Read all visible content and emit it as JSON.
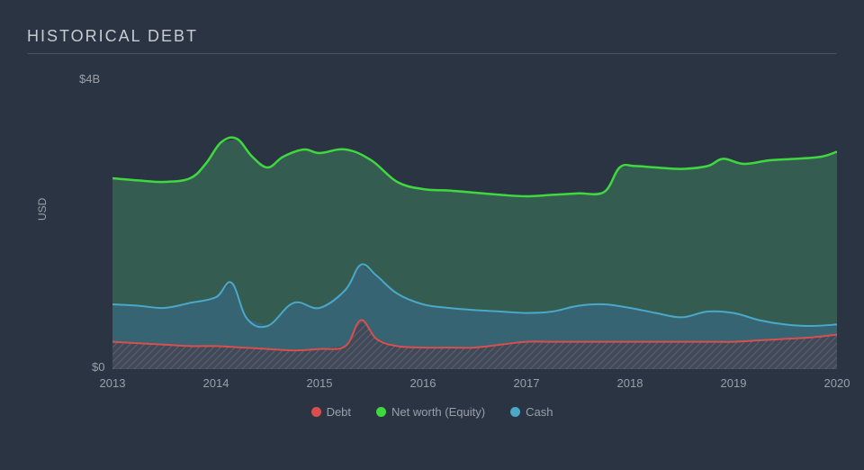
{
  "chart": {
    "type": "stacked-area",
    "title": "HISTORICAL DEBT",
    "background_color": "#2a3442",
    "title_color": "#c8ccd2",
    "title_fontsize": 18,
    "title_letter_spacing": 2,
    "axis_label_color": "#9aa0aa",
    "axis_fontsize": 13,
    "grid_color": "#3a4250",
    "border_color": "#4a5260",
    "y_axis": {
      "title": "USD",
      "min": 0,
      "max": 4,
      "unit": "B",
      "currency": "$",
      "tick_labels": {
        "top": "$4B",
        "bottom": "$0"
      }
    },
    "x_axis": {
      "min": 2013,
      "max": 2020,
      "ticks": [
        2013,
        2014,
        2015,
        2016,
        2017,
        2018,
        2019,
        2020
      ]
    },
    "series": [
      {
        "name": "Debt",
        "stroke": "#d94f4f",
        "fill": "#4a5161",
        "fill_opacity": 0.85,
        "hatch": true,
        "hatch_color": "#636a78",
        "line_width": 2,
        "points": [
          {
            "x": 2013.0,
            "y": 0.38
          },
          {
            "x": 2013.25,
            "y": 0.36
          },
          {
            "x": 2013.5,
            "y": 0.34
          },
          {
            "x": 2013.75,
            "y": 0.32
          },
          {
            "x": 2014.0,
            "y": 0.32
          },
          {
            "x": 2014.25,
            "y": 0.3
          },
          {
            "x": 2014.5,
            "y": 0.28
          },
          {
            "x": 2014.75,
            "y": 0.26
          },
          {
            "x": 2015.0,
            "y": 0.28
          },
          {
            "x": 2015.25,
            "y": 0.32
          },
          {
            "x": 2015.4,
            "y": 0.68
          },
          {
            "x": 2015.55,
            "y": 0.42
          },
          {
            "x": 2015.75,
            "y": 0.32
          },
          {
            "x": 2016.0,
            "y": 0.3
          },
          {
            "x": 2016.25,
            "y": 0.3
          },
          {
            "x": 2016.5,
            "y": 0.3
          },
          {
            "x": 2016.75,
            "y": 0.34
          },
          {
            "x": 2017.0,
            "y": 0.38
          },
          {
            "x": 2017.25,
            "y": 0.38
          },
          {
            "x": 2017.5,
            "y": 0.38
          },
          {
            "x": 2017.75,
            "y": 0.38
          },
          {
            "x": 2018.0,
            "y": 0.38
          },
          {
            "x": 2018.25,
            "y": 0.38
          },
          {
            "x": 2018.5,
            "y": 0.38
          },
          {
            "x": 2018.75,
            "y": 0.38
          },
          {
            "x": 2019.0,
            "y": 0.38
          },
          {
            "x": 2019.25,
            "y": 0.4
          },
          {
            "x": 2019.5,
            "y": 0.42
          },
          {
            "x": 2019.75,
            "y": 0.44
          },
          {
            "x": 2020.0,
            "y": 0.48
          }
        ]
      },
      {
        "name": "Cash",
        "stroke": "#4aa8c9",
        "fill": "#39707f",
        "fill_opacity": 0.8,
        "line_width": 2,
        "points": [
          {
            "x": 2013.0,
            "y": 0.9
          },
          {
            "x": 2013.25,
            "y": 0.88
          },
          {
            "x": 2013.5,
            "y": 0.85
          },
          {
            "x": 2013.75,
            "y": 0.92
          },
          {
            "x": 2014.0,
            "y": 1.0
          },
          {
            "x": 2014.15,
            "y": 1.2
          },
          {
            "x": 2014.3,
            "y": 0.7
          },
          {
            "x": 2014.5,
            "y": 0.6
          },
          {
            "x": 2014.75,
            "y": 0.92
          },
          {
            "x": 2015.0,
            "y": 0.85
          },
          {
            "x": 2015.25,
            "y": 1.1
          },
          {
            "x": 2015.4,
            "y": 1.45
          },
          {
            "x": 2015.55,
            "y": 1.3
          },
          {
            "x": 2015.75,
            "y": 1.05
          },
          {
            "x": 2016.0,
            "y": 0.9
          },
          {
            "x": 2016.25,
            "y": 0.85
          },
          {
            "x": 2016.5,
            "y": 0.82
          },
          {
            "x": 2016.75,
            "y": 0.8
          },
          {
            "x": 2017.0,
            "y": 0.78
          },
          {
            "x": 2017.25,
            "y": 0.8
          },
          {
            "x": 2017.5,
            "y": 0.88
          },
          {
            "x": 2017.75,
            "y": 0.9
          },
          {
            "x": 2018.0,
            "y": 0.85
          },
          {
            "x": 2018.25,
            "y": 0.78
          },
          {
            "x": 2018.5,
            "y": 0.72
          },
          {
            "x": 2018.75,
            "y": 0.8
          },
          {
            "x": 2019.0,
            "y": 0.78
          },
          {
            "x": 2019.25,
            "y": 0.68
          },
          {
            "x": 2019.5,
            "y": 0.62
          },
          {
            "x": 2019.75,
            "y": 0.6
          },
          {
            "x": 2020.0,
            "y": 0.62
          }
        ]
      },
      {
        "name": "Net worth (Equity)",
        "stroke": "#3fd93f",
        "fill": "#3a6a56",
        "fill_opacity": 0.75,
        "line_width": 2.5,
        "points": [
          {
            "x": 2013.0,
            "y": 2.65
          },
          {
            "x": 2013.25,
            "y": 2.62
          },
          {
            "x": 2013.5,
            "y": 2.6
          },
          {
            "x": 2013.75,
            "y": 2.65
          },
          {
            "x": 2013.9,
            "y": 2.85
          },
          {
            "x": 2014.05,
            "y": 3.15
          },
          {
            "x": 2014.2,
            "y": 3.2
          },
          {
            "x": 2014.35,
            "y": 2.95
          },
          {
            "x": 2014.5,
            "y": 2.8
          },
          {
            "x": 2014.65,
            "y": 2.95
          },
          {
            "x": 2014.85,
            "y": 3.05
          },
          {
            "x": 2015.0,
            "y": 3.0
          },
          {
            "x": 2015.25,
            "y": 3.05
          },
          {
            "x": 2015.5,
            "y": 2.9
          },
          {
            "x": 2015.75,
            "y": 2.6
          },
          {
            "x": 2016.0,
            "y": 2.5
          },
          {
            "x": 2016.25,
            "y": 2.48
          },
          {
            "x": 2016.5,
            "y": 2.45
          },
          {
            "x": 2016.75,
            "y": 2.42
          },
          {
            "x": 2017.0,
            "y": 2.4
          },
          {
            "x": 2017.25,
            "y": 2.42
          },
          {
            "x": 2017.5,
            "y": 2.44
          },
          {
            "x": 2017.75,
            "y": 2.46
          },
          {
            "x": 2017.9,
            "y": 2.8
          },
          {
            "x": 2018.05,
            "y": 2.82
          },
          {
            "x": 2018.25,
            "y": 2.8
          },
          {
            "x": 2018.5,
            "y": 2.78
          },
          {
            "x": 2018.75,
            "y": 2.82
          },
          {
            "x": 2018.9,
            "y": 2.92
          },
          {
            "x": 2019.1,
            "y": 2.85
          },
          {
            "x": 2019.35,
            "y": 2.9
          },
          {
            "x": 2019.6,
            "y": 2.92
          },
          {
            "x": 2019.85,
            "y": 2.95
          },
          {
            "x": 2020.0,
            "y": 3.02
          }
        ]
      }
    ],
    "legend": {
      "position": "bottom",
      "items": [
        {
          "label": "Debt",
          "color": "#d94f4f"
        },
        {
          "label": "Net worth (Equity)",
          "color": "#3fd93f"
        },
        {
          "label": "Cash",
          "color": "#4aa8c9"
        }
      ]
    }
  }
}
